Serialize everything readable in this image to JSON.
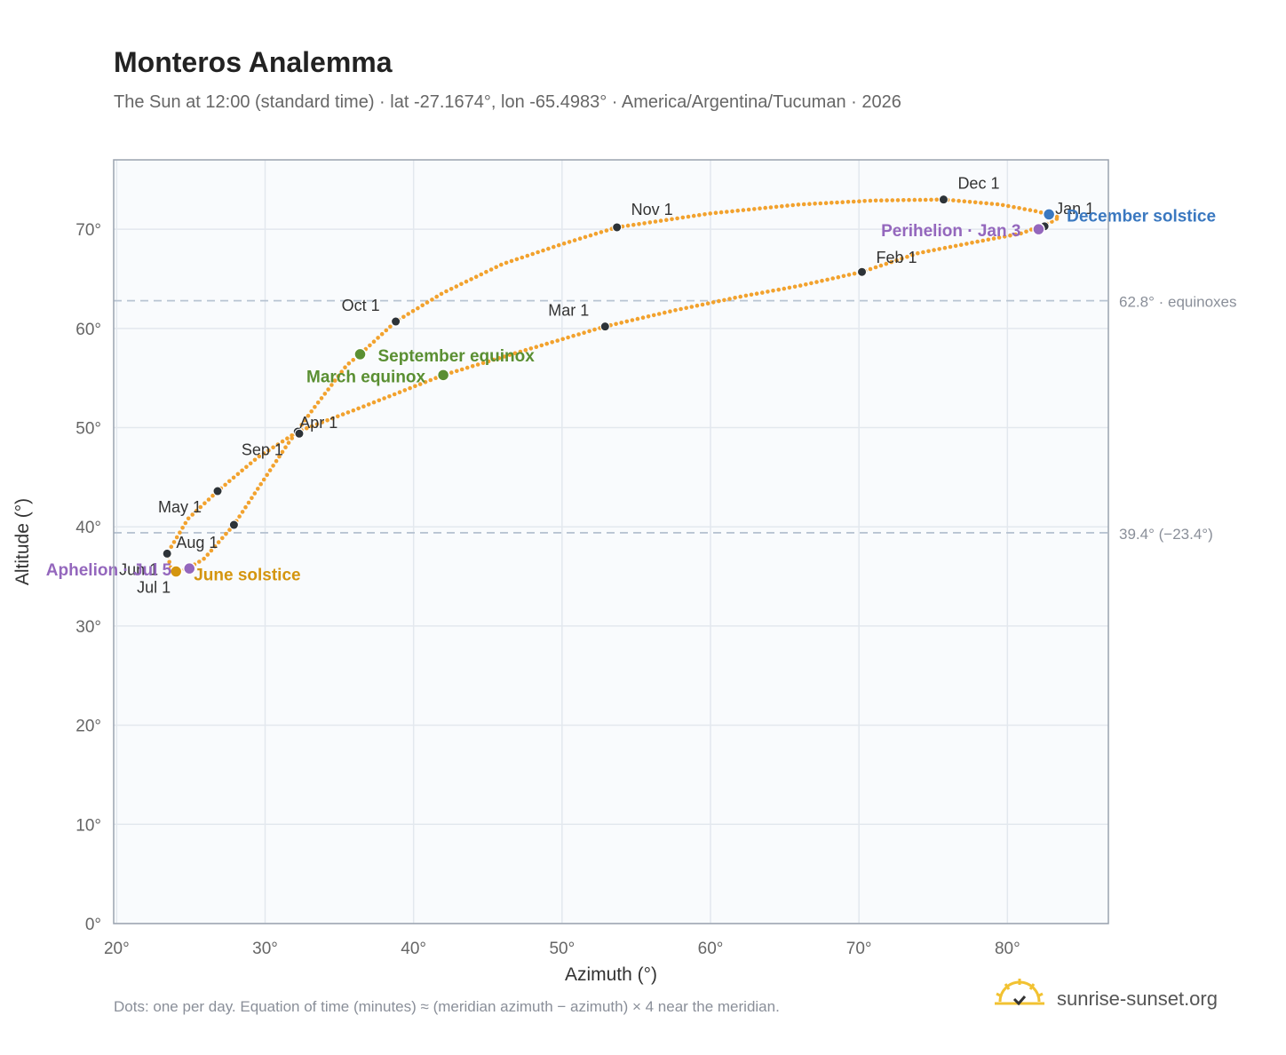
{
  "title": "Monteros Analemma",
  "subtitle": "The Sun at 12:00 (standard time) · lat -27.1674°, lon -65.4983° · America/Argentina/Tucuman · 2026",
  "footer": "Dots: one per day. Equation of time (minutes) ≈ (meridian azimuth − azimuth) × 4 near the meridian.",
  "brand": {
    "text": "sunrise-sunset.org",
    "icon": "sun-logo-icon"
  },
  "colors": {
    "curve": "#f2a22e",
    "month_dot": "#2d3338",
    "equinox": "#5a8f32",
    "june_solstice": "#d4950f",
    "december_solstice": "#3a78c0",
    "apsis": "#9467bd",
    "refline": "#b8c4d2",
    "plot_bg": "#f9fbfd"
  },
  "chart_data": {
    "type": "scatter",
    "xlabel": "Azimuth (°)",
    "ylabel": "Altitude (°)",
    "xlim": [
      19.8,
      86.8
    ],
    "ylim": [
      0,
      77
    ],
    "x_ticks": [
      20,
      30,
      40,
      50,
      60,
      70,
      80
    ],
    "y_ticks": [
      0,
      10,
      20,
      30,
      40,
      50,
      60,
      70
    ],
    "tick_suffix": "°",
    "grid": true,
    "reference_lines": [
      {
        "y": 62.8,
        "label": "62.8° · equinoxes"
      },
      {
        "y": 39.4,
        "label": "39.4° (−23.4°)"
      }
    ],
    "curve": {
      "description": "Dots: one per day",
      "points": [
        [
          82.3,
          70.4
        ],
        [
          81.0,
          69.6
        ],
        [
          78.5,
          68.9
        ],
        [
          74.0,
          67.6
        ],
        [
          70.2,
          65.7
        ],
        [
          66.0,
          64.3
        ],
        [
          62.0,
          63.2
        ],
        [
          57.5,
          61.8
        ],
        [
          52.9,
          60.2
        ],
        [
          47.5,
          57.8
        ],
        [
          42.0,
          55.3
        ],
        [
          36.4,
          52.0
        ],
        [
          32.2,
          49.6
        ],
        [
          29.5,
          47.0
        ],
        [
          26.8,
          43.6
        ],
        [
          24.8,
          40.8
        ],
        [
          23.4,
          37.3
        ],
        [
          23.7,
          35.6
        ],
        [
          24.0,
          35.5
        ],
        [
          24.8,
          35.8
        ],
        [
          25.9,
          36.8
        ],
        [
          27.9,
          40.2
        ],
        [
          29.8,
          44.5
        ],
        [
          31.5,
          48.3
        ],
        [
          33.2,
          51.8
        ],
        [
          35.5,
          56.3
        ],
        [
          36.4,
          57.4
        ],
        [
          38.8,
          60.7
        ],
        [
          42.0,
          63.6
        ],
        [
          46.0,
          66.5
        ],
        [
          50.0,
          68.5
        ],
        [
          53.7,
          70.2
        ],
        [
          60.0,
          71.6
        ],
        [
          66.0,
          72.5
        ],
        [
          71.0,
          72.9
        ],
        [
          75.7,
          73.0
        ],
        [
          79.5,
          72.5
        ],
        [
          82.0,
          71.8
        ],
        [
          83.5,
          71.2
        ],
        [
          82.8,
          70.6
        ],
        [
          82.3,
          70.4
        ]
      ]
    },
    "month_markers": [
      {
        "label": "Jan 1",
        "x": 82.5,
        "y": 70.3
      },
      {
        "label": "Feb 1",
        "x": 70.2,
        "y": 65.7
      },
      {
        "label": "Mar 1",
        "x": 52.9,
        "y": 60.2
      },
      {
        "label": "Apr 1",
        "x": 32.2,
        "y": 49.6
      },
      {
        "label": "May 1",
        "x": 26.8,
        "y": 43.6
      },
      {
        "label": "Jun 1",
        "x": 23.4,
        "y": 37.3
      },
      {
        "label": "Jul 1",
        "x": 24.0,
        "y": 35.5
      },
      {
        "label": "Aug 1",
        "x": 27.9,
        "y": 40.2
      },
      {
        "label": "Sep 1",
        "x": 32.3,
        "y": 49.4
      },
      {
        "label": "Oct 1",
        "x": 38.8,
        "y": 60.7
      },
      {
        "label": "Nov 1",
        "x": 53.7,
        "y": 70.2
      },
      {
        "label": "Dec 1",
        "x": 75.7,
        "y": 73.0
      }
    ],
    "events": [
      {
        "label": "March equinox",
        "x": 42.0,
        "y": 55.3,
        "kind": "equinox"
      },
      {
        "label": "September equinox",
        "x": 36.4,
        "y": 57.4,
        "kind": "equinox"
      },
      {
        "label": "June solstice",
        "x": 24.0,
        "y": 35.5,
        "kind": "june_solstice"
      },
      {
        "label": "December solstice",
        "x": 82.8,
        "y": 71.5,
        "kind": "december_solstice"
      },
      {
        "label": "Aphelion · Jul 5",
        "x": 24.9,
        "y": 35.8,
        "kind": "apsis"
      },
      {
        "label": "Perihelion · Jan 3",
        "x": 82.1,
        "y": 70.0,
        "kind": "apsis"
      }
    ]
  }
}
